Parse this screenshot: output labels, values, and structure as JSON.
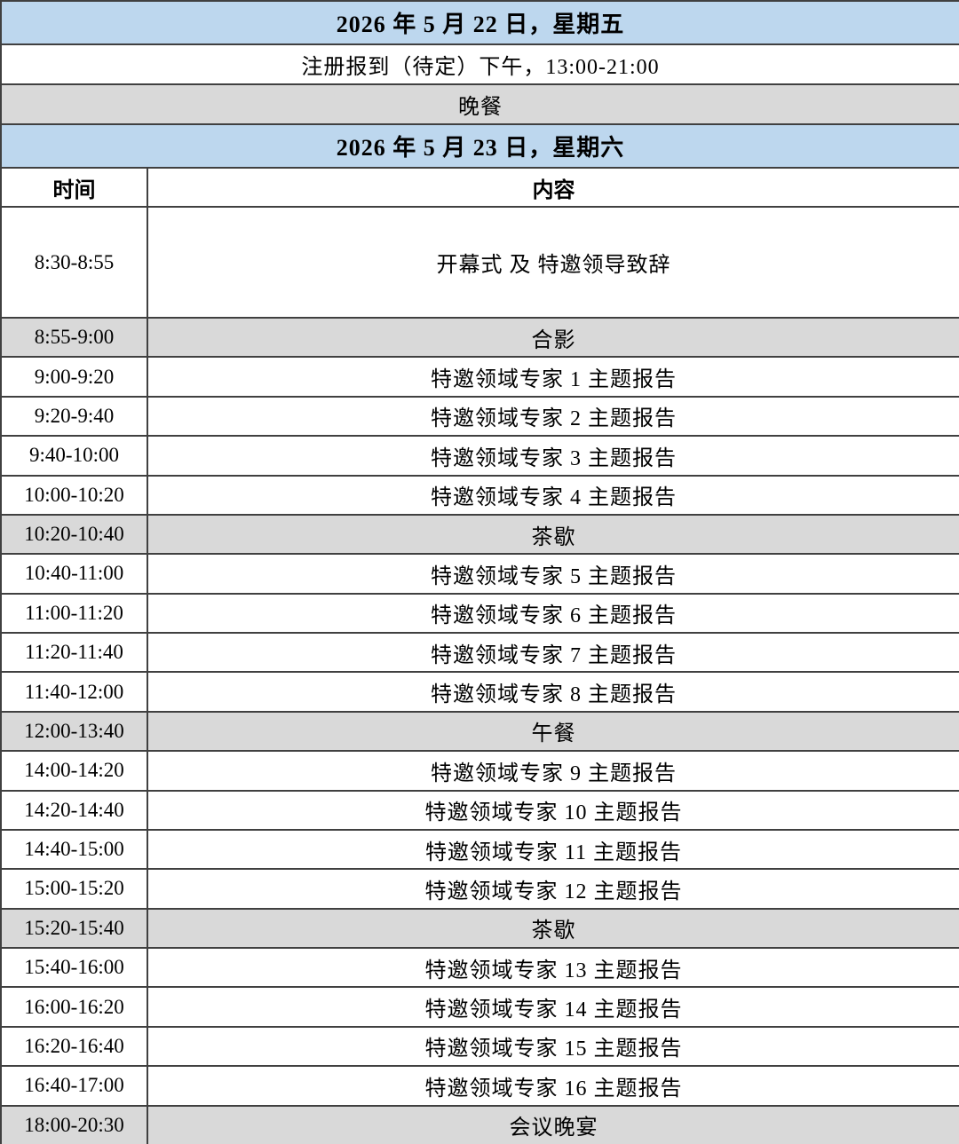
{
  "colors": {
    "header_blue": "#BDD7EE",
    "row_gray": "#D9D9D9",
    "border": "#404040",
    "text": "#000000"
  },
  "day1": {
    "date_header": "2026 年 5 月 22 日，星期五",
    "rows": [
      {
        "text": "注册报到（待定）下午，13:00-21:00",
        "shaded": false
      },
      {
        "text": "晚餐",
        "shaded": true
      }
    ]
  },
  "day2": {
    "date_header": "2026 年 5 月 23 日，星期六",
    "col_time": "时间",
    "col_content": "内容",
    "rows": [
      {
        "time": "8:30-8:55",
        "content": "开幕式 及 特邀领导致辞",
        "shaded": false,
        "tall": true
      },
      {
        "time": "8:55-9:00",
        "content": "合影",
        "shaded": true,
        "tall": false
      },
      {
        "time": "9:00-9:20",
        "content": "特邀领域专家 1 主题报告",
        "shaded": false,
        "tall": false
      },
      {
        "time": "9:20-9:40",
        "content": "特邀领域专家 2 主题报告",
        "shaded": false,
        "tall": false
      },
      {
        "time": "9:40-10:00",
        "content": "特邀领域专家 3 主题报告",
        "shaded": false,
        "tall": false
      },
      {
        "time": "10:00-10:20",
        "content": "特邀领域专家 4 主题报告",
        "shaded": false,
        "tall": false
      },
      {
        "time": "10:20-10:40",
        "content": "茶歇",
        "shaded": true,
        "tall": false
      },
      {
        "time": "10:40-11:00",
        "content": "特邀领域专家 5 主题报告",
        "shaded": false,
        "tall": false
      },
      {
        "time": "11:00-11:20",
        "content": "特邀领域专家 6 主题报告",
        "shaded": false,
        "tall": false
      },
      {
        "time": "11:20-11:40",
        "content": "特邀领域专家 7 主题报告",
        "shaded": false,
        "tall": false
      },
      {
        "time": "11:40-12:00",
        "content": "特邀领域专家 8 主题报告",
        "shaded": false,
        "tall": false
      },
      {
        "time": "12:00-13:40",
        "content": "午餐",
        "shaded": true,
        "tall": false
      },
      {
        "time": "14:00-14:20",
        "content": "特邀领域专家 9 主题报告",
        "shaded": false,
        "tall": false
      },
      {
        "time": "14:20-14:40",
        "content": "特邀领域专家 10 主题报告",
        "shaded": false,
        "tall": false
      },
      {
        "time": "14:40-15:00",
        "content": "特邀领域专家 11 主题报告",
        "shaded": false,
        "tall": false
      },
      {
        "time": "15:00-15:20",
        "content": "特邀领域专家 12 主题报告",
        "shaded": false,
        "tall": false
      },
      {
        "time": "15:20-15:40",
        "content": "茶歇",
        "shaded": true,
        "tall": false
      },
      {
        "time": "15:40-16:00",
        "content": "特邀领域专家 13 主题报告",
        "shaded": false,
        "tall": false
      },
      {
        "time": "16:00-16:20",
        "content": "特邀领域专家 14 主题报告",
        "shaded": false,
        "tall": false
      },
      {
        "time": "16:20-16:40",
        "content": "特邀领域专家 15 主题报告",
        "shaded": false,
        "tall": false
      },
      {
        "time": "16:40-17:00",
        "content": "特邀领域专家 16 主题报告",
        "shaded": false,
        "tall": false
      },
      {
        "time": "18:00-20:30",
        "content": "会议晚宴",
        "shaded": true,
        "tall": false
      }
    ]
  }
}
